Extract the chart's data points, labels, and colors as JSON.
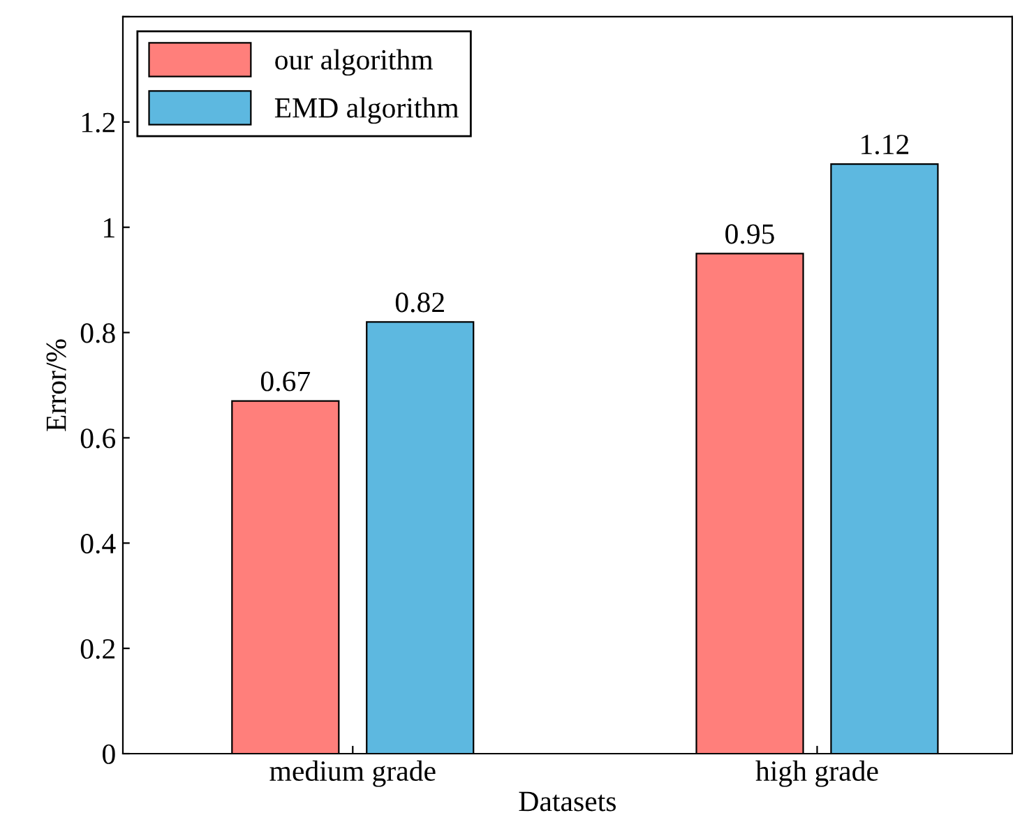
{
  "chart_data": {
    "type": "bar",
    "xlabel": "Datasets",
    "ylabel": "Error/%",
    "categories": [
      "medium grade",
      "high grade"
    ],
    "series": [
      {
        "name": "our algorithm",
        "color": "#ff7f7b",
        "values": [
          0.67,
          0.95
        ]
      },
      {
        "name": "EMD algorithm",
        "color": "#5db8e0",
        "values": [
          0.82,
          1.12
        ]
      }
    ],
    "ylim": [
      0,
      1.4
    ],
    "yticks": [
      0,
      0.2,
      0.4,
      0.6,
      0.8,
      1,
      1.2,
      {
        "value": 1.4,
        "label": null
      }
    ],
    "data_labels": true,
    "legend": "top left",
    "grid": false
  }
}
